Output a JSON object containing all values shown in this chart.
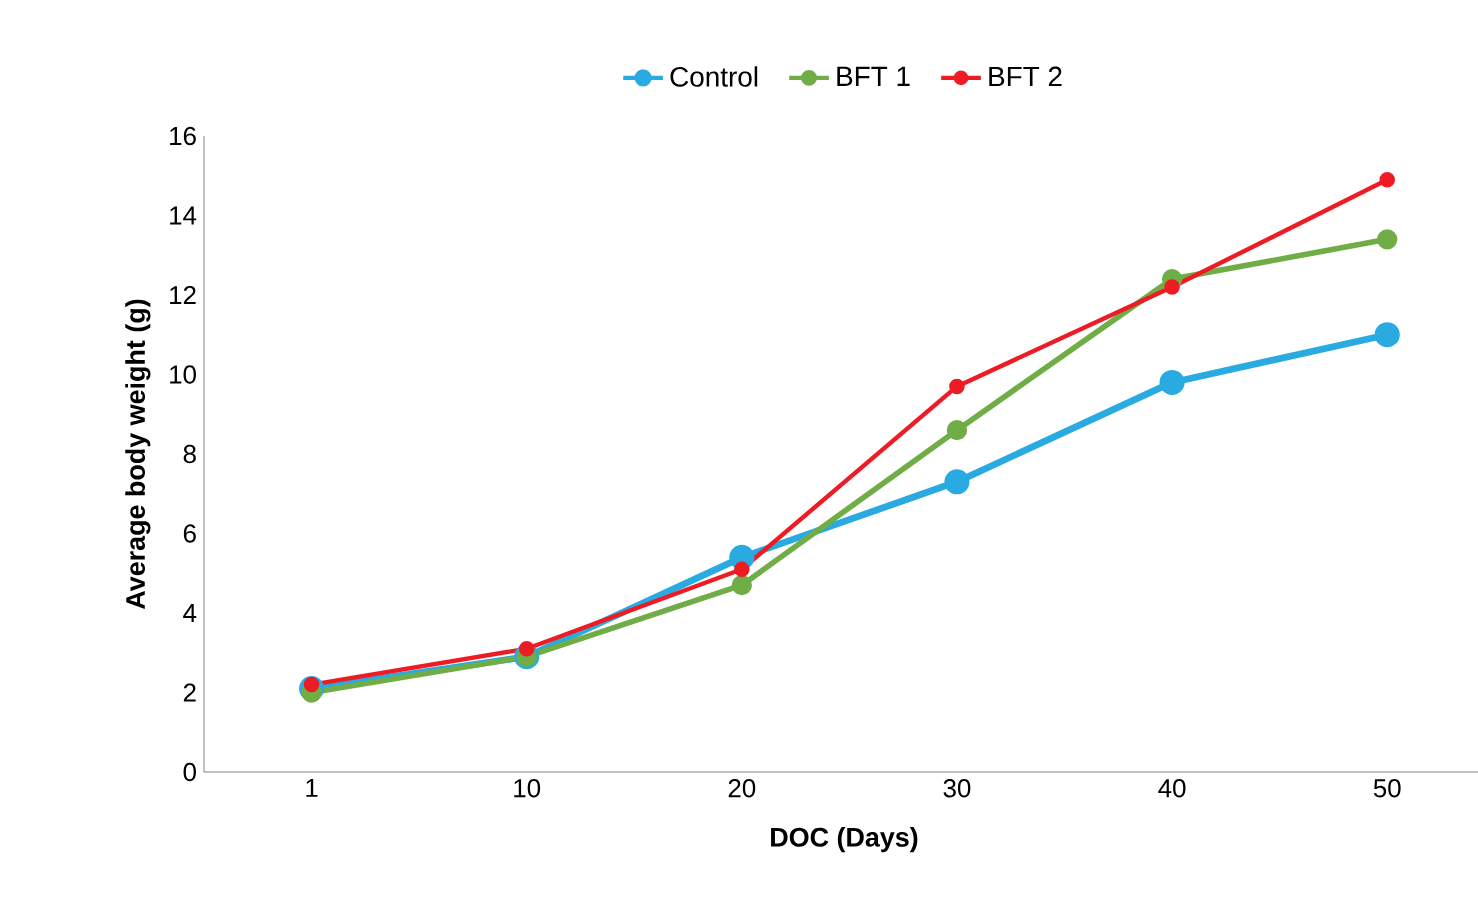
{
  "chart_data": {
    "type": "line",
    "xlabel": "DOC (Days)",
    "ylabel": "Average body weight (g)",
    "categories": [
      "1",
      "10",
      "20",
      "30",
      "40",
      "50"
    ],
    "ylim": [
      0,
      16
    ],
    "yticks": [
      0,
      2,
      4,
      6,
      8,
      10,
      12,
      14,
      16
    ],
    "legend": "top",
    "marker": "circle",
    "line_style": "solid",
    "series": [
      {
        "name": "Control",
        "color": "#29abe2",
        "values": [
          2.1,
          2.9,
          5.4,
          7.3,
          9.8,
          11.0
        ]
      },
      {
        "name": "BFT 1",
        "color": "#70ad47",
        "values": [
          2.0,
          2.9,
          4.7,
          8.6,
          12.4,
          13.4
        ]
      },
      {
        "name": "BFT 2",
        "color": "#ed1c24",
        "values": [
          2.2,
          3.1,
          5.1,
          9.7,
          12.2,
          14.9
        ]
      }
    ]
  }
}
